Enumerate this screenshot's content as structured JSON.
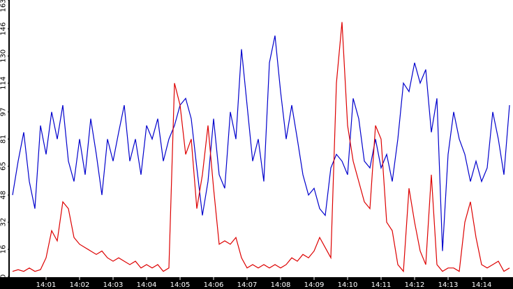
{
  "chart_data": {
    "type": "line",
    "categories": [
      null,
      null,
      null,
      null,
      null,
      null,
      "14:01",
      null,
      null,
      null,
      null,
      null,
      "14:02",
      null,
      null,
      null,
      null,
      null,
      "14:03",
      null,
      null,
      null,
      null,
      null,
      "14:04",
      null,
      null,
      null,
      null,
      null,
      "14:05",
      null,
      null,
      null,
      null,
      null,
      "14:06",
      null,
      null,
      null,
      null,
      null,
      "14:07",
      null,
      null,
      null,
      null,
      null,
      "14:08",
      null,
      null,
      null,
      null,
      null,
      "14:09",
      null,
      null,
      null,
      null,
      null,
      "14:10",
      null,
      null,
      null,
      null,
      null,
      "14:11",
      null,
      null,
      null,
      null,
      null,
      "14:12",
      null,
      null,
      null,
      null,
      null,
      "14:13",
      null,
      null,
      null,
      null,
      null,
      "14:14",
      null,
      null,
      null,
      null,
      null
    ],
    "series": [
      {
        "color": "#0000cc",
        "values": [
          48,
          68,
          85,
          56,
          40,
          89,
          72,
          97,
          81,
          101,
          68,
          56,
          81,
          60,
          93,
          72,
          48,
          81,
          68,
          85,
          101,
          68,
          81,
          60,
          89,
          81,
          93,
          68,
          81,
          89,
          101,
          105,
          93,
          64,
          36,
          56,
          93,
          60,
          52,
          97,
          81,
          134,
          101,
          68,
          81,
          56,
          126,
          142,
          109,
          81,
          101,
          81,
          60,
          48,
          52,
          40,
          36,
          64,
          72,
          68,
          60,
          105,
          93,
          68,
          64,
          81,
          64,
          72,
          56,
          81,
          114,
          109,
          126,
          114,
          122,
          85,
          105,
          15,
          72,
          97,
          81,
          72,
          56,
          68,
          56,
          64,
          97,
          81,
          60,
          101
        ]
      },
      {
        "color": "#dd0000",
        "values": [
          3,
          4,
          3,
          5,
          3,
          4,
          11,
          27,
          21,
          44,
          40,
          23,
          19,
          17,
          15,
          13,
          15,
          11,
          9,
          11,
          9,
          7,
          9,
          5,
          7,
          5,
          7,
          3,
          5,
          114,
          101,
          72,
          81,
          40,
          60,
          89,
          52,
          19,
          21,
          19,
          23,
          11,
          5,
          7,
          5,
          7,
          5,
          7,
          5,
          7,
          11,
          9,
          13,
          11,
          15,
          23,
          17,
          11,
          114,
          150,
          89,
          68,
          56,
          44,
          40,
          89,
          81,
          32,
          27,
          7,
          3,
          52,
          32,
          15,
          7,
          60,
          7,
          3,
          5,
          5,
          3,
          32,
          44,
          23,
          7,
          5,
          7,
          9,
          3,
          5
        ]
      }
    ],
    "ylim": [
      0,
      163
    ],
    "yticks": [
      0,
      16,
      32,
      48,
      65,
      81,
      97,
      114,
      130,
      146,
      163
    ]
  }
}
